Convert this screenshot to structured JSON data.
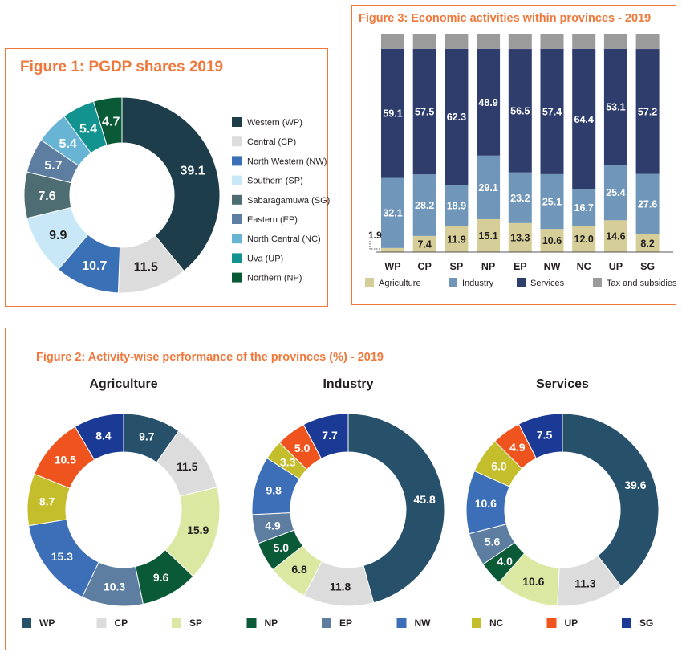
{
  "colors": {
    "WP": "#27506b",
    "CP": "#dcdcdc",
    "SP": "#dbe8a2",
    "NP": "#0a5a37",
    "EP": "#5d7ea0",
    "NW": "#3c6fb8",
    "NC": "#c4be2c",
    "UP": "#f0541e",
    "SG": "#1a3a95",
    "Agriculture": "#d6ce98",
    "Industry": "#7096b9",
    "Services": "#2e3d6c",
    "Tax": "#9b9b9b",
    "accent": "#f0773a"
  },
  "chart_data": [
    {
      "type": "pie",
      "title": "Figure 1: PGDP shares 2019",
      "categories": [
        "Western (WP)",
        "Central (CP)",
        "North Western (NW)",
        "Southern (SP)",
        "Sabaragamuwa (SG)",
        "Eastern (EP)",
        "North Central (NC)",
        "Uva (UP)",
        "Northern (NP)"
      ],
      "values": [
        39.1,
        11.5,
        10.7,
        9.9,
        7.6,
        5.7,
        5.4,
        5.4,
        4.7
      ],
      "colors": [
        "#1d3d4b",
        "#dcdcdc",
        "#3a70b5",
        "#c8e8f8",
        "#4d6d73",
        "#5d7ea0",
        "#67b4d4",
        "#13938f",
        "#0a5a37"
      ],
      "label_colors": [
        "#ffffff",
        "#231f20",
        "#ffffff",
        "#231f20",
        "#ffffff",
        "#ffffff",
        "#ffffff",
        "#ffffff",
        "#ffffff"
      ],
      "legend_position": "right"
    },
    {
      "type": "bar",
      "stacked": true,
      "title": "Figure 3: Economic activities within provinces - 2019",
      "categories": [
        "WP",
        "CP",
        "SP",
        "NP",
        "EP",
        "NW",
        "NC",
        "UP",
        "SG"
      ],
      "series": [
        {
          "name": "Agriculture",
          "values": [
            1.9,
            7.4,
            11.9,
            15.1,
            13.3,
            10.6,
            12.0,
            14.6,
            8.2
          ]
        },
        {
          "name": "Industry",
          "values": [
            32.1,
            28.2,
            18.9,
            29.1,
            23.2,
            25.1,
            16.7,
            25.4,
            27.6
          ]
        },
        {
          "name": "Services",
          "values": [
            59.1,
            57.5,
            62.3,
            48.9,
            56.5,
            57.4,
            64.4,
            53.1,
            57.2
          ]
        },
        {
          "name": "Tax and subsidies"
        }
      ],
      "ylim": [
        0,
        100
      ],
      "legend_position": "bottom"
    },
    {
      "type": "pie",
      "title": "Figure 2: Activity-wise performance of the provinces (%) - 2019",
      "charts": [
        {
          "title": "Agriculture",
          "categories": [
            "WP",
            "CP",
            "SP",
            "NP",
            "EP",
            "NW",
            "NC",
            "UP",
            "SG"
          ],
          "values": [
            9.7,
            11.5,
            15.9,
            9.6,
            10.3,
            15.3,
            8.7,
            10.5,
            8.4
          ]
        },
        {
          "title": "Industry",
          "categories": [
            "WP",
            "CP",
            "SP",
            "NP",
            "EP",
            "NW",
            "NC",
            "UP",
            "SG"
          ],
          "values": [
            45.8,
            11.8,
            6.8,
            5.0,
            4.9,
            9.8,
            3.3,
            5.0,
            7.7
          ]
        },
        {
          "title": "Services",
          "categories": [
            "WP",
            "CP",
            "SP",
            "NP",
            "EP",
            "NW",
            "NC",
            "UP",
            "SG"
          ],
          "values": [
            39.6,
            11.3,
            10.6,
            4.0,
            5.6,
            10.6,
            6.0,
            4.9,
            7.5
          ]
        }
      ],
      "legend": [
        "WP",
        "CP",
        "SP",
        "NP",
        "EP",
        "NW",
        "NC",
        "UP",
        "SG"
      ],
      "legend_position": "bottom"
    }
  ]
}
